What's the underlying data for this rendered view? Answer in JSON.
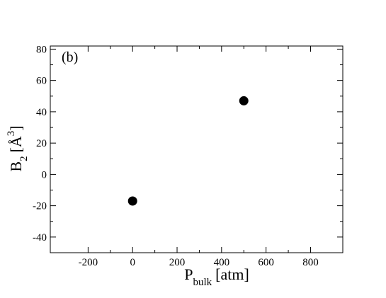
{
  "chart_data": {
    "type": "scatter",
    "annotation": "(b)",
    "xlabel": {
      "main": "P",
      "sub": "bulk",
      "unit": "[atm]"
    },
    "ylabel": {
      "main": "B",
      "sub": "2",
      "unit_open": "[",
      "unit_symbol": "Å",
      "unit_sup": "3",
      "unit_close": "]"
    },
    "xlim": [
      -370,
      945
    ],
    "ylim": [
      -50,
      82
    ],
    "xticks": [
      -200,
      0,
      200,
      400,
      600,
      800
    ],
    "yticks": [
      -40,
      -20,
      0,
      20,
      40,
      60,
      80
    ],
    "grid": false,
    "marker_color": "#000000",
    "series": [
      {
        "points": [
          {
            "x": 0,
            "y": -17
          },
          {
            "x": 500,
            "y": 47
          }
        ]
      }
    ]
  }
}
